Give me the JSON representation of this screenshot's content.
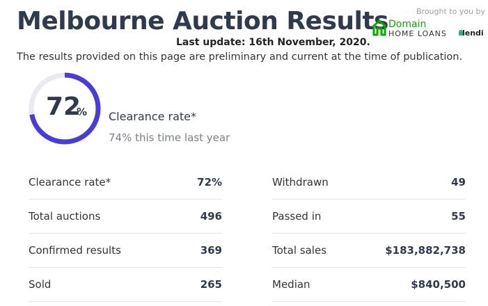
{
  "header": {
    "title": "Melbourne Auction Results",
    "last_update": "Last update: 16th November, 2020.",
    "sponsor_note": "Brought to you by",
    "sponsor_brand": "Domain",
    "sponsor_product": "HOME LOANS",
    "partner": "lendi"
  },
  "description": "The results provided on this page are preliminary and current at the time of publication.",
  "gauge": {
    "value": 72,
    "unit": "%",
    "label": "Clearance rate*",
    "comparison": "74% this time last year"
  },
  "stats": {
    "left": [
      [
        "Clearance rate*",
        "72%"
      ],
      [
        "Total auctions",
        "496"
      ],
      [
        "Confirmed results",
        "369"
      ],
      [
        "Sold",
        "265"
      ]
    ],
    "right": [
      [
        "Withdrawn",
        "49"
      ],
      [
        "Passed in",
        "55"
      ],
      [
        "Total sales",
        "$183,882,738"
      ],
      [
        "Median",
        "$840,500"
      ]
    ]
  }
}
